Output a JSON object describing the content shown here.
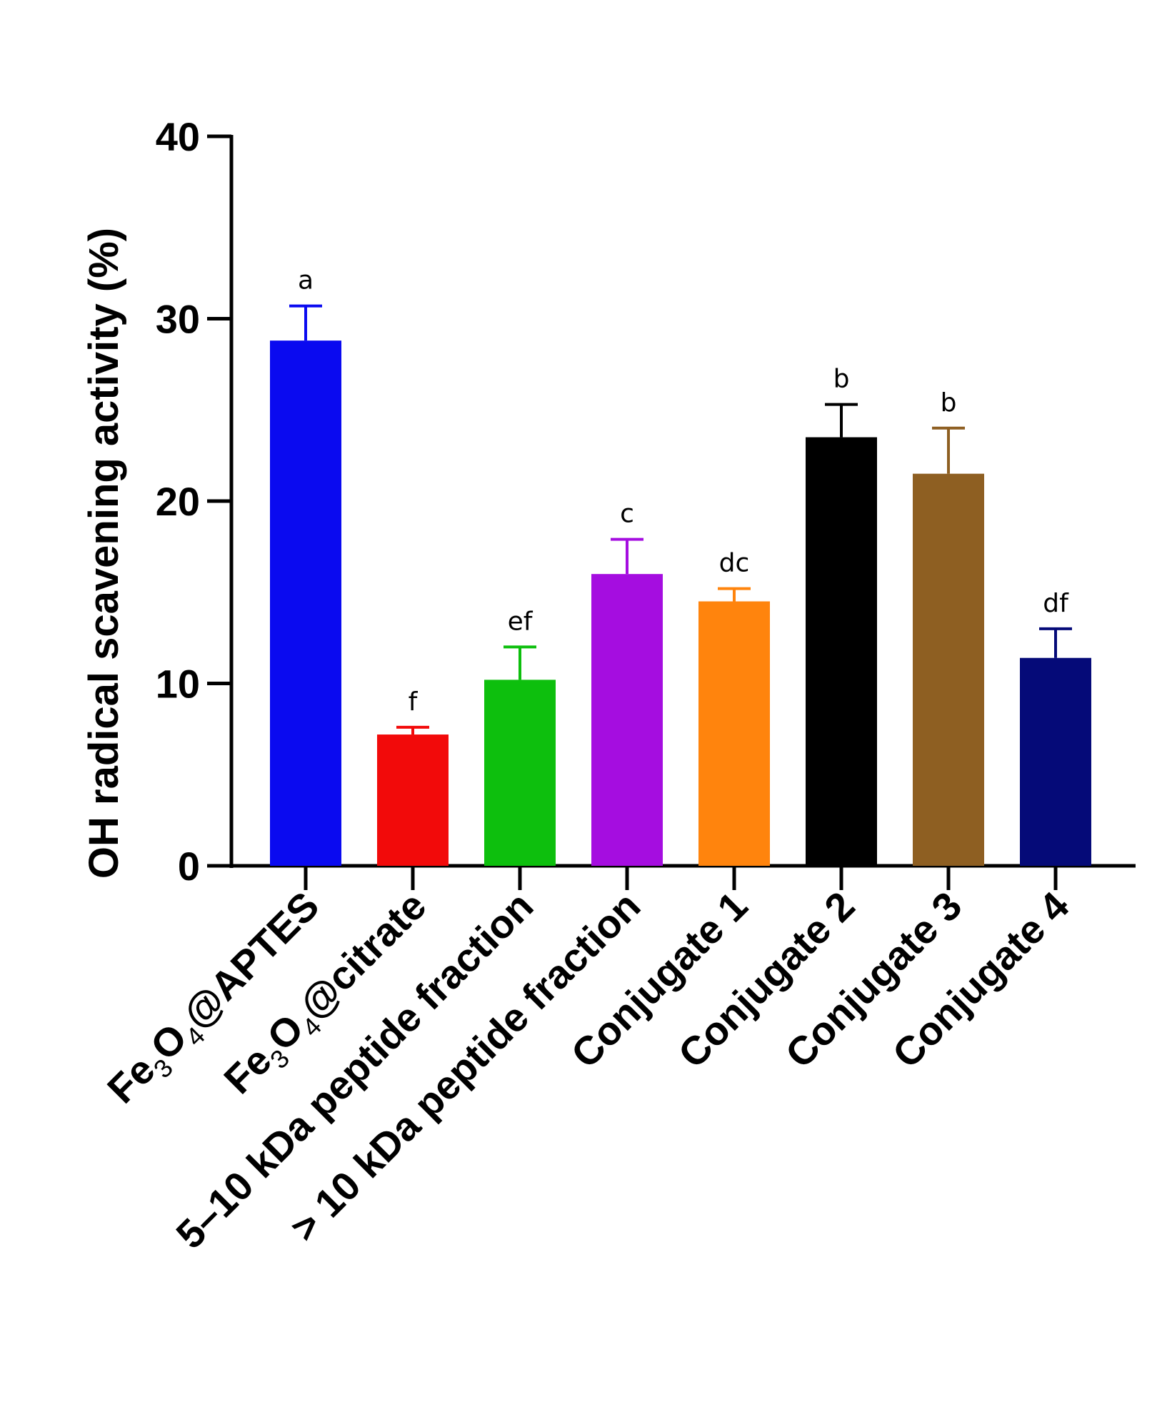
{
  "chart_data": {
    "type": "bar",
    "ylabel": "OH radical scavening activity (%)",
    "xlabel": "",
    "ylim": [
      0,
      40
    ],
    "yticks": [
      0,
      10,
      20,
      30,
      40
    ],
    "categories": [
      {
        "label": "Fe₃O₄@APTES",
        "parts": [
          [
            "Fe",
            "n"
          ],
          [
            "3",
            "sub"
          ],
          [
            "O",
            "n"
          ],
          [
            "4",
            "sub"
          ],
          [
            "@APTES",
            "n"
          ]
        ]
      },
      {
        "label": "Fe₃O₄@citrate",
        "parts": [
          [
            "Fe",
            "n"
          ],
          [
            "3",
            "sub"
          ],
          [
            "O",
            "n"
          ],
          [
            "4",
            "sub"
          ],
          [
            "@citrate",
            "n"
          ]
        ]
      },
      {
        "label": "5–10 kDa peptide fraction",
        "parts": [
          [
            "5–10 kDa peptide fraction",
            "n"
          ]
        ]
      },
      {
        "label": "> 10 kDa peptide fraction",
        "parts": [
          [
            "> 10 kDa peptide fraction",
            "n"
          ]
        ]
      },
      {
        "label": "Conjugate 1",
        "parts": [
          [
            "Conjugate 1",
            "n"
          ]
        ]
      },
      {
        "label": "Conjugate 2",
        "parts": [
          [
            "Conjugate 2",
            "n"
          ]
        ]
      },
      {
        "label": "Conjugate 3",
        "parts": [
          [
            "Conjugate 3",
            "n"
          ]
        ]
      },
      {
        "label": "Conjugate 4",
        "parts": [
          [
            "Conjugate 4",
            "n"
          ]
        ]
      }
    ],
    "values": [
      28.8,
      7.2,
      10.2,
      16.0,
      14.5,
      23.5,
      21.5,
      11.4
    ],
    "errors": [
      1.9,
      0.4,
      1.8,
      1.9,
      0.7,
      1.8,
      2.5,
      1.6
    ],
    "significance": [
      "a",
      "f",
      "ef",
      "c",
      "dc",
      "b",
      "b",
      "df"
    ],
    "colors": [
      "#0a0af0",
      "#f20a0a",
      "#0dbf0d",
      "#a50de0",
      "#ff840d",
      "#000000",
      "#8e5f22",
      "#050a78"
    ]
  }
}
